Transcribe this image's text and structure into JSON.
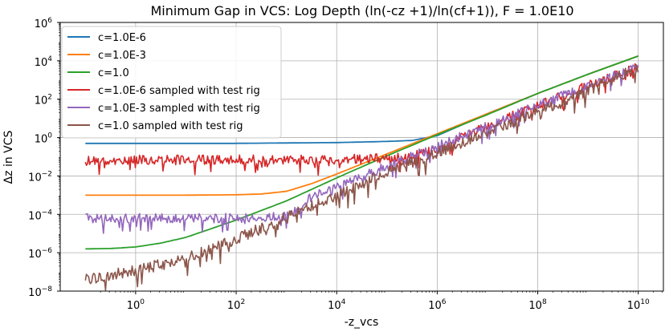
{
  "chart_data": {
    "type": "line",
    "title": "Minimum Gap in VCS: Log Depth (ln(-cz +1)/ln(cf+1)), F = 1.0E10",
    "xlabel": "-z_vcs",
    "ylabel": "Δz in VCS",
    "xscale": "log",
    "yscale": "log",
    "xlim_log10": [
      -1.5,
      10.5
    ],
    "ylim_log10": [
      -8,
      6
    ],
    "x_tick_labels": [
      {
        "base": "10",
        "exp": "0"
      },
      {
        "base": "10",
        "exp": "2"
      },
      {
        "base": "10",
        "exp": "4"
      },
      {
        "base": "10",
        "exp": "6"
      },
      {
        "base": "10",
        "exp": "8"
      },
      {
        "base": "10",
        "exp": "10"
      }
    ],
    "y_tick_labels": [
      {
        "base": "10",
        "exp": "6"
      },
      {
        "base": "10",
        "exp": "4"
      },
      {
        "base": "10",
        "exp": "2"
      },
      {
        "base": "10",
        "exp": "0"
      },
      {
        "base": "10",
        "exp": "−2"
      },
      {
        "base": "10",
        "exp": "−4"
      },
      {
        "base": "10",
        "exp": "−6"
      },
      {
        "base": "10",
        "exp": "−8"
      }
    ],
    "grid": true,
    "legend_position": "upper-left",
    "series": [
      {
        "name": "c=1.0E-6",
        "color": "#1f77b4",
        "x_log10": [
          -1,
          0,
          1,
          2,
          3,
          4,
          5,
          5.5,
          6,
          7,
          8,
          9,
          10
        ],
        "y_log10": [
          -0.3,
          -0.3,
          -0.3,
          -0.3,
          -0.28,
          -0.26,
          -0.2,
          -0.15,
          0.1,
          1.25,
          2.3,
          3.3,
          4.25
        ]
      },
      {
        "name": "c=1.0E-3",
        "color": "#ff7f0e",
        "x_log10": [
          -1,
          0,
          1,
          2,
          2.5,
          3,
          3.5,
          4,
          5,
          6,
          7,
          8,
          9,
          10
        ],
        "y_log10": [
          -3.0,
          -3.0,
          -3.0,
          -2.98,
          -2.94,
          -2.8,
          -2.4,
          -1.9,
          -0.85,
          0.2,
          1.25,
          2.3,
          3.3,
          4.25
        ]
      },
      {
        "name": "c=1.0",
        "color": "#2ca02c",
        "x_log10": [
          -1,
          -0.5,
          0,
          0.5,
          1,
          1.5,
          2,
          3,
          4,
          5,
          6,
          7,
          8,
          9,
          10
        ],
        "y_log10": [
          -5.8,
          -5.78,
          -5.7,
          -5.5,
          -5.2,
          -4.75,
          -4.3,
          -3.3,
          -2.1,
          -0.95,
          0.15,
          1.2,
          2.3,
          3.3,
          4.25
        ]
      },
      {
        "name": "c=1.0E-6 sampled with test rig",
        "color": "#d62728",
        "x_log10": [
          -1,
          0,
          2,
          3,
          4,
          5,
          5.5,
          6,
          7,
          8,
          9,
          10
        ],
        "y_log10": [
          -1.2,
          -1.15,
          -1.15,
          -1.15,
          -1.15,
          -1.05,
          -0.9,
          -0.55,
          0.6,
          1.7,
          2.7,
          3.7
        ],
        "noise": 0.35
      },
      {
        "name": "c=1.0E-3 sampled with test rig",
        "color": "#9467bd",
        "x_log10": [
          -1,
          0,
          2,
          2.5,
          3,
          3.5,
          4,
          5,
          6,
          7,
          8,
          9,
          10
        ],
        "y_log10": [
          -4.2,
          -4.2,
          -4.2,
          -4.15,
          -4.1,
          -3.1,
          -2.6,
          -1.5,
          -0.45,
          0.6,
          1.7,
          2.7,
          3.7
        ],
        "noise": 0.35
      },
      {
        "name": "c=1.0 sampled with test rig",
        "color": "#8c564b",
        "x_log10": [
          -1,
          0,
          1,
          2,
          3,
          4,
          5,
          6,
          7,
          8,
          9,
          10
        ],
        "y_log10": [
          -7.4,
          -6.9,
          -6.3,
          -5.3,
          -4.1,
          -3.0,
          -1.8,
          -0.8,
          0.3,
          1.35,
          2.45,
          3.65
        ],
        "noise": 0.4
      }
    ]
  }
}
